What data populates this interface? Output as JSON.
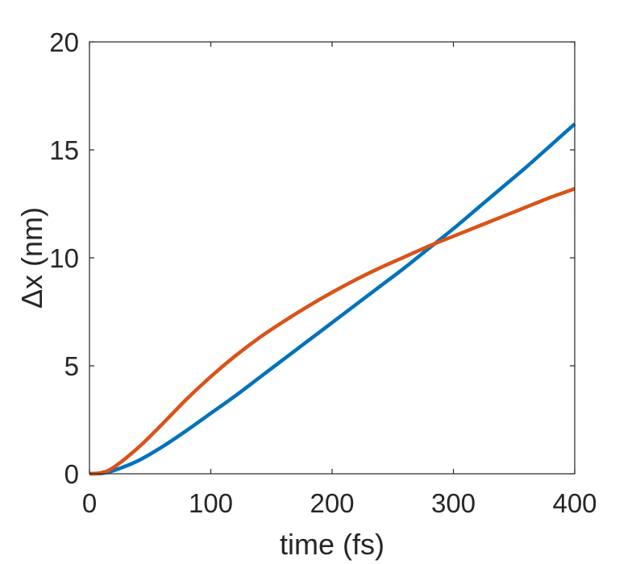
{
  "chart_data": {
    "type": "line",
    "title": "",
    "xlabel": "time (fs)",
    "ylabel": "Δx (nm)",
    "xlim": [
      0,
      400
    ],
    "ylim": [
      0,
      20
    ],
    "xticks": [
      0,
      100,
      200,
      300,
      400
    ],
    "yticks": [
      0,
      5,
      10,
      15,
      20
    ],
    "xtick_labels": [
      "0",
      "100",
      "200",
      "300",
      "400"
    ],
    "ytick_labels": [
      "0",
      "5",
      "10",
      "15",
      "20"
    ],
    "grid": false,
    "legend": "none",
    "series": [
      {
        "color": "#0072BD",
        "x": [
          0,
          10,
          20,
          40,
          60,
          80,
          100,
          120,
          140,
          160,
          180,
          200,
          220,
          240,
          260,
          280,
          300,
          320,
          340,
          360,
          380,
          400
        ],
        "y": [
          0,
          0.02,
          0.15,
          0.6,
          1.25,
          2.0,
          2.8,
          3.6,
          4.45,
          5.3,
          6.15,
          7.0,
          7.85,
          8.7,
          9.55,
          10.45,
          11.35,
          12.3,
          13.25,
          14.2,
          15.2,
          16.2
        ]
      },
      {
        "color": "#D95319",
        "x": [
          0,
          10,
          20,
          40,
          60,
          80,
          100,
          120,
          140,
          160,
          180,
          200,
          220,
          240,
          260,
          280,
          300,
          320,
          340,
          360,
          380,
          400
        ],
        "y": [
          0,
          0.05,
          0.3,
          1.2,
          2.3,
          3.45,
          4.5,
          5.45,
          6.3,
          7.05,
          7.75,
          8.4,
          9.0,
          9.55,
          10.05,
          10.55,
          11.0,
          11.45,
          11.9,
          12.35,
          12.8,
          13.2
        ]
      }
    ]
  }
}
